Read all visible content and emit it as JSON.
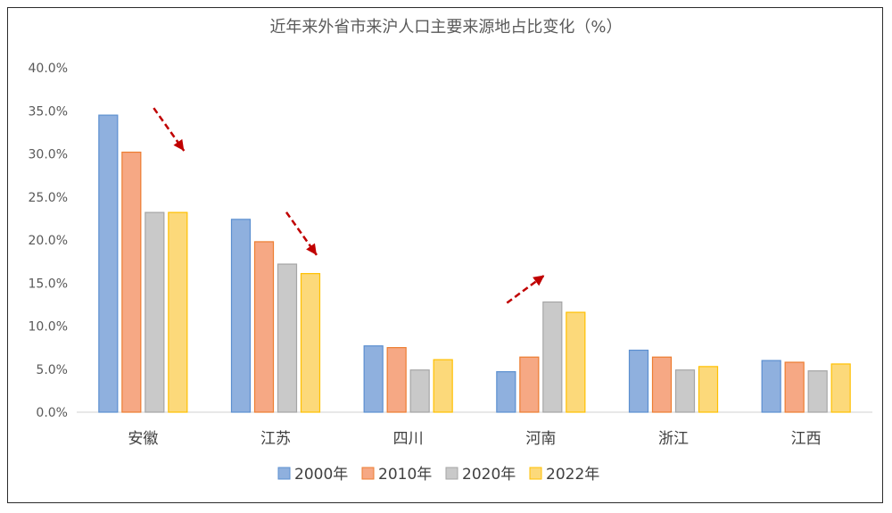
{
  "chart_data": {
    "type": "bar",
    "title": "近年来外省市来沪人口主要来源地占比变化（%）",
    "categories": [
      "安徽",
      "江苏",
      "四川",
      "河南",
      "浙江",
      "江西"
    ],
    "series": [
      {
        "name": "2000年",
        "values": [
          34.5,
          22.4,
          7.7,
          4.7,
          7.2,
          6.0
        ],
        "color": "#8fb0de",
        "stroke": "#5b8fd0"
      },
      {
        "name": "2010年",
        "values": [
          30.2,
          19.8,
          7.5,
          6.4,
          6.4,
          5.8
        ],
        "color": "#f6a884",
        "stroke": "#ed7d31"
      },
      {
        "name": "2020年",
        "values": [
          23.2,
          17.2,
          4.9,
          12.8,
          4.9,
          4.8
        ],
        "color": "#c9c9c9",
        "stroke": "#a5a5a5"
      },
      {
        "name": "2022年",
        "values": [
          23.2,
          16.1,
          6.1,
          11.6,
          5.3,
          5.6
        ],
        "color": "#fcd97a",
        "stroke": "#ffc000"
      }
    ],
    "y_ticks": [
      "0.0%",
      "5.0%",
      "10.0%",
      "15.0%",
      "20.0%",
      "25.0%",
      "30.0%",
      "35.0%",
      "40.0%"
    ],
    "ylim": [
      0,
      40
    ],
    "grid": false,
    "legend": "bottom",
    "annotations": [
      {
        "type": "arrow",
        "direction": "down",
        "category": "安徽",
        "color": "#c00000"
      },
      {
        "type": "arrow",
        "direction": "down",
        "category": "江苏",
        "color": "#c00000"
      },
      {
        "type": "arrow",
        "direction": "up",
        "category": "河南",
        "color": "#c00000"
      }
    ]
  }
}
